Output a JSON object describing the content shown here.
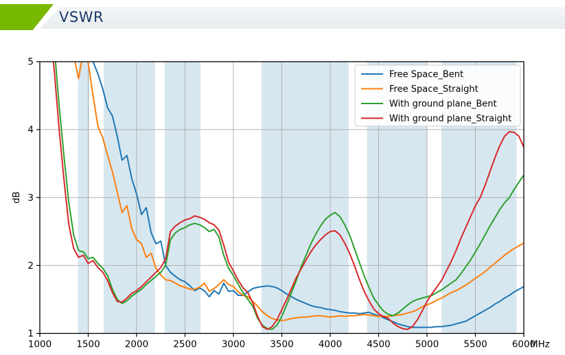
{
  "header": {
    "title": "VSWR",
    "accent_green": "#77b900",
    "title_color": "#1b3a67"
  },
  "chart_data": {
    "type": "line",
    "title": "VSWR",
    "ylabel": "dB",
    "x_unit": "MHz",
    "xlim": [
      1000,
      6000
    ],
    "ylim": [
      1,
      5
    ],
    "x_ticks": [
      1000,
      1500,
      2000,
      2500,
      3000,
      3500,
      4000,
      4500,
      5000,
      5500,
      6000
    ],
    "y_ticks": [
      1,
      2,
      3,
      4,
      5
    ],
    "grid": true,
    "grid_color": "#b0b0b0",
    "legend_position": "upper right",
    "band_color": "#d7e7f0",
    "shaded_bands_mhz": [
      [
        1395,
        1510
      ],
      [
        1660,
        2190
      ],
      [
        2290,
        2660
      ],
      [
        3290,
        4190
      ],
      [
        4380,
        5000
      ],
      [
        5150,
        5925
      ]
    ],
    "x_start_mhz": 1000,
    "x_step_mhz": 50,
    "series": [
      {
        "name": "Free Space_Bent",
        "color": "#1f77b4",
        "values": [
          null,
          null,
          null,
          null,
          null,
          null,
          null,
          null,
          null,
          6.0,
          5.4,
          5.0,
          4.82,
          4.6,
          4.32,
          4.2,
          3.9,
          3.55,
          3.62,
          3.28,
          3.05,
          2.75,
          2.85,
          2.48,
          2.32,
          2.36,
          2.0,
          1.9,
          1.84,
          1.79,
          1.76,
          1.7,
          1.63,
          1.67,
          1.63,
          1.54,
          1.63,
          1.58,
          1.74,
          1.62,
          1.63,
          1.56,
          1.56,
          1.61,
          1.66,
          1.68,
          1.69,
          1.7,
          1.69,
          1.67,
          1.63,
          1.58,
          1.54,
          1.5,
          1.47,
          1.44,
          1.41,
          1.39,
          1.38,
          1.36,
          1.35,
          1.34,
          1.32,
          1.31,
          1.3,
          1.3,
          1.29,
          1.3,
          1.31,
          1.28,
          1.26,
          1.23,
          1.2,
          1.17,
          1.14,
          1.12,
          1.1,
          1.09,
          1.09,
          1.09,
          1.09,
          1.09,
          1.1,
          1.1,
          1.11,
          1.12,
          1.14,
          1.16,
          1.18,
          1.22,
          1.26,
          1.3,
          1.34,
          1.38,
          1.43,
          1.47,
          1.52,
          1.56,
          1.61,
          1.65,
          1.69
        ]
      },
      {
        "name": "Free Space_Straight",
        "color": "#ff7f0e",
        "values": [
          null,
          null,
          null,
          null,
          null,
          null,
          6.0,
          5.1,
          4.75,
          5.15,
          4.98,
          4.5,
          4.05,
          3.88,
          3.62,
          3.38,
          3.08,
          2.78,
          2.88,
          2.54,
          2.38,
          2.32,
          2.12,
          2.18,
          1.96,
          1.86,
          1.79,
          1.78,
          1.74,
          1.7,
          1.68,
          1.65,
          1.65,
          1.68,
          1.74,
          1.62,
          1.66,
          1.72,
          1.79,
          1.72,
          1.69,
          1.61,
          1.56,
          1.54,
          1.47,
          1.4,
          1.32,
          1.26,
          1.22,
          1.2,
          1.19,
          1.2,
          1.22,
          1.23,
          1.24,
          1.24,
          1.25,
          1.26,
          1.26,
          1.25,
          1.24,
          1.25,
          1.26,
          1.25,
          1.26,
          1.26,
          1.27,
          1.28,
          1.27,
          1.26,
          1.25,
          1.25,
          1.25,
          1.26,
          1.27,
          1.28,
          1.3,
          1.32,
          1.35,
          1.39,
          1.42,
          1.45,
          1.49,
          1.52,
          1.56,
          1.6,
          1.63,
          1.67,
          1.71,
          1.76,
          1.81,
          1.86,
          1.91,
          1.97,
          2.03,
          2.09,
          2.15,
          2.2,
          2.25,
          2.29,
          2.33
        ]
      },
      {
        "name": "With ground plane_Bent",
        "color": "#2ca02c",
        "values": [
          8.5,
          7.2,
          5.9,
          5.2,
          4.35,
          3.6,
          2.92,
          2.45,
          2.22,
          2.2,
          2.1,
          2.12,
          2.03,
          1.96,
          1.85,
          1.65,
          1.5,
          1.44,
          1.48,
          1.55,
          1.6,
          1.65,
          1.72,
          1.78,
          1.84,
          1.9,
          2.0,
          2.38,
          2.48,
          2.53,
          2.56,
          2.6,
          2.62,
          2.6,
          2.56,
          2.5,
          2.53,
          2.42,
          2.15,
          1.96,
          1.85,
          1.72,
          1.6,
          1.5,
          1.4,
          1.22,
          1.12,
          1.07,
          1.06,
          1.12,
          1.25,
          1.42,
          1.6,
          1.78,
          1.98,
          2.15,
          2.32,
          2.46,
          2.58,
          2.68,
          2.74,
          2.78,
          2.72,
          2.6,
          2.45,
          2.25,
          2.05,
          1.85,
          1.68,
          1.52,
          1.42,
          1.33,
          1.28,
          1.26,
          1.3,
          1.36,
          1.42,
          1.47,
          1.5,
          1.52,
          1.54,
          1.56,
          1.6,
          1.64,
          1.69,
          1.74,
          1.79,
          1.88,
          1.98,
          2.08,
          2.2,
          2.32,
          2.45,
          2.58,
          2.7,
          2.82,
          2.92,
          3.0,
          3.12,
          3.23,
          3.33
        ]
      },
      {
        "name": "With ground plane_Straight",
        "color": "#d62728",
        "values": [
          8.0,
          6.7,
          5.6,
          4.85,
          4.0,
          3.25,
          2.6,
          2.25,
          2.12,
          2.15,
          2.03,
          2.07,
          1.97,
          1.9,
          1.78,
          1.6,
          1.47,
          1.46,
          1.52,
          1.59,
          1.63,
          1.69,
          1.76,
          1.83,
          1.9,
          1.97,
          2.1,
          2.5,
          2.58,
          2.63,
          2.67,
          2.69,
          2.73,
          2.71,
          2.68,
          2.63,
          2.6,
          2.52,
          2.3,
          2.05,
          1.92,
          1.78,
          1.67,
          1.6,
          1.45,
          1.25,
          1.1,
          1.06,
          1.1,
          1.2,
          1.35,
          1.5,
          1.66,
          1.82,
          1.95,
          2.08,
          2.2,
          2.3,
          2.38,
          2.45,
          2.5,
          2.51,
          2.45,
          2.33,
          2.18,
          2.0,
          1.8,
          1.62,
          1.48,
          1.36,
          1.29,
          1.25,
          1.22,
          1.15,
          1.1,
          1.07,
          1.06,
          1.1,
          1.2,
          1.33,
          1.47,
          1.58,
          1.68,
          1.78,
          1.92,
          2.06,
          2.22,
          2.4,
          2.56,
          2.72,
          2.88,
          3.0,
          3.18,
          3.38,
          3.58,
          3.76,
          3.9,
          3.97,
          3.96,
          3.9,
          3.74
        ]
      }
    ]
  }
}
